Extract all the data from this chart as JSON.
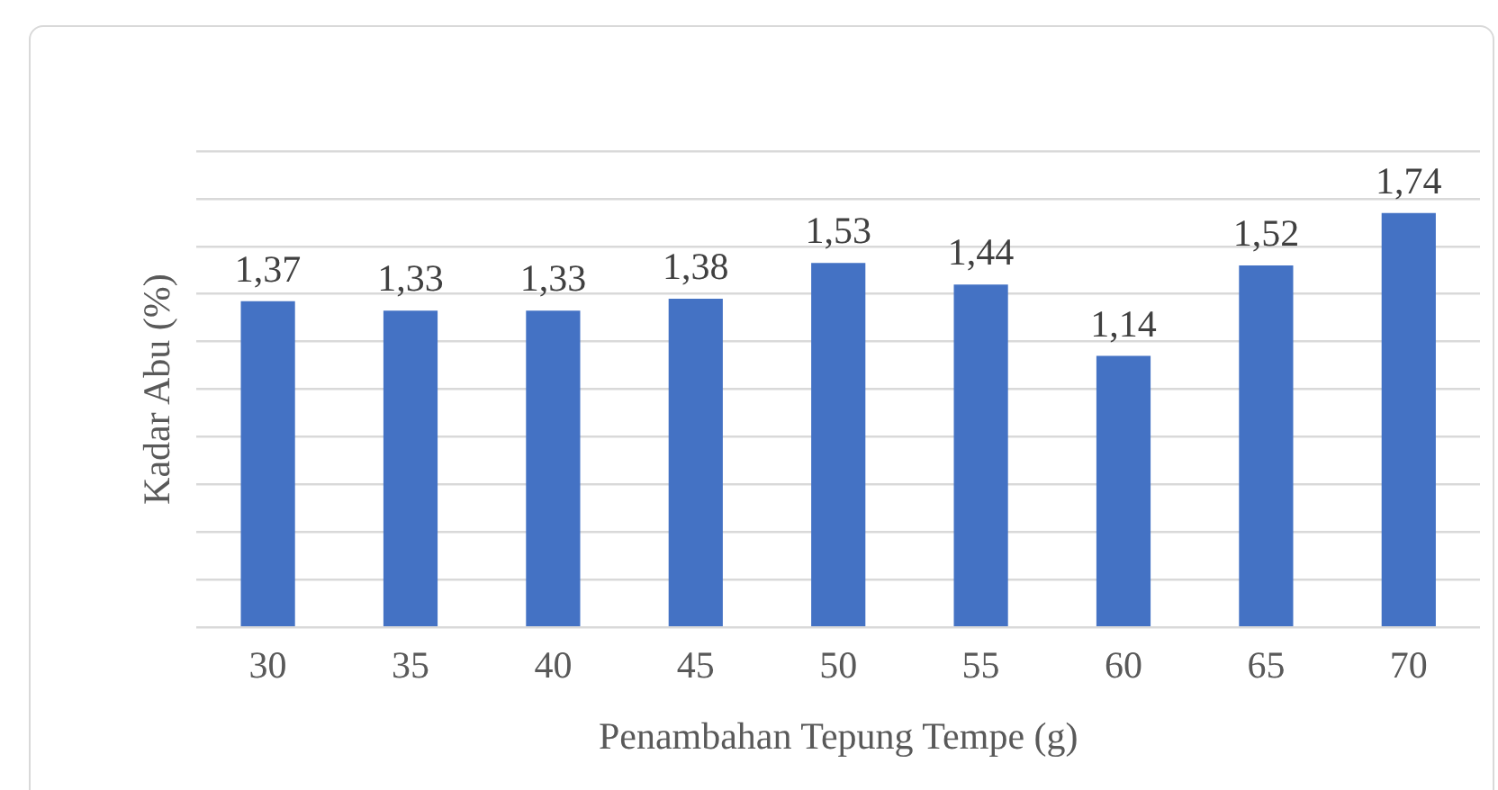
{
  "chart_data": {
    "type": "bar",
    "xlabel": "Penambahan Tepung Tempe (g)",
    "ylabel": "Kadar Abu (%)",
    "categories": [
      "30",
      "35",
      "40",
      "45",
      "50",
      "55",
      "60",
      "65",
      "70"
    ],
    "values": [
      1.37,
      1.33,
      1.33,
      1.38,
      1.53,
      1.44,
      1.14,
      1.52,
      1.74
    ],
    "value_labels": [
      "1,37",
      "1,33",
      "1,33",
      "1,38",
      "1,53",
      "1,44",
      "1,14",
      "1,52",
      "1,74"
    ],
    "color": "#4472c4",
    "ylim": [
      0,
      2
    ],
    "yticks": [
      {
        "value": 0,
        "label": null
      },
      {
        "value": 0.2,
        "label": null
      },
      {
        "value": 0.4,
        "label": null
      },
      {
        "value": 0.6,
        "label": null
      },
      {
        "value": 0.8,
        "label": null
      },
      {
        "value": 1,
        "label": null
      },
      {
        "value": 1.2,
        "label": null
      },
      {
        "value": 1.4,
        "label": null
      },
      {
        "value": 1.6,
        "label": null
      },
      {
        "value": 1.8,
        "label": null
      },
      {
        "value": 2,
        "label": null
      }
    ],
    "tick_labels": "x",
    "grid": "y",
    "legend": false
  }
}
